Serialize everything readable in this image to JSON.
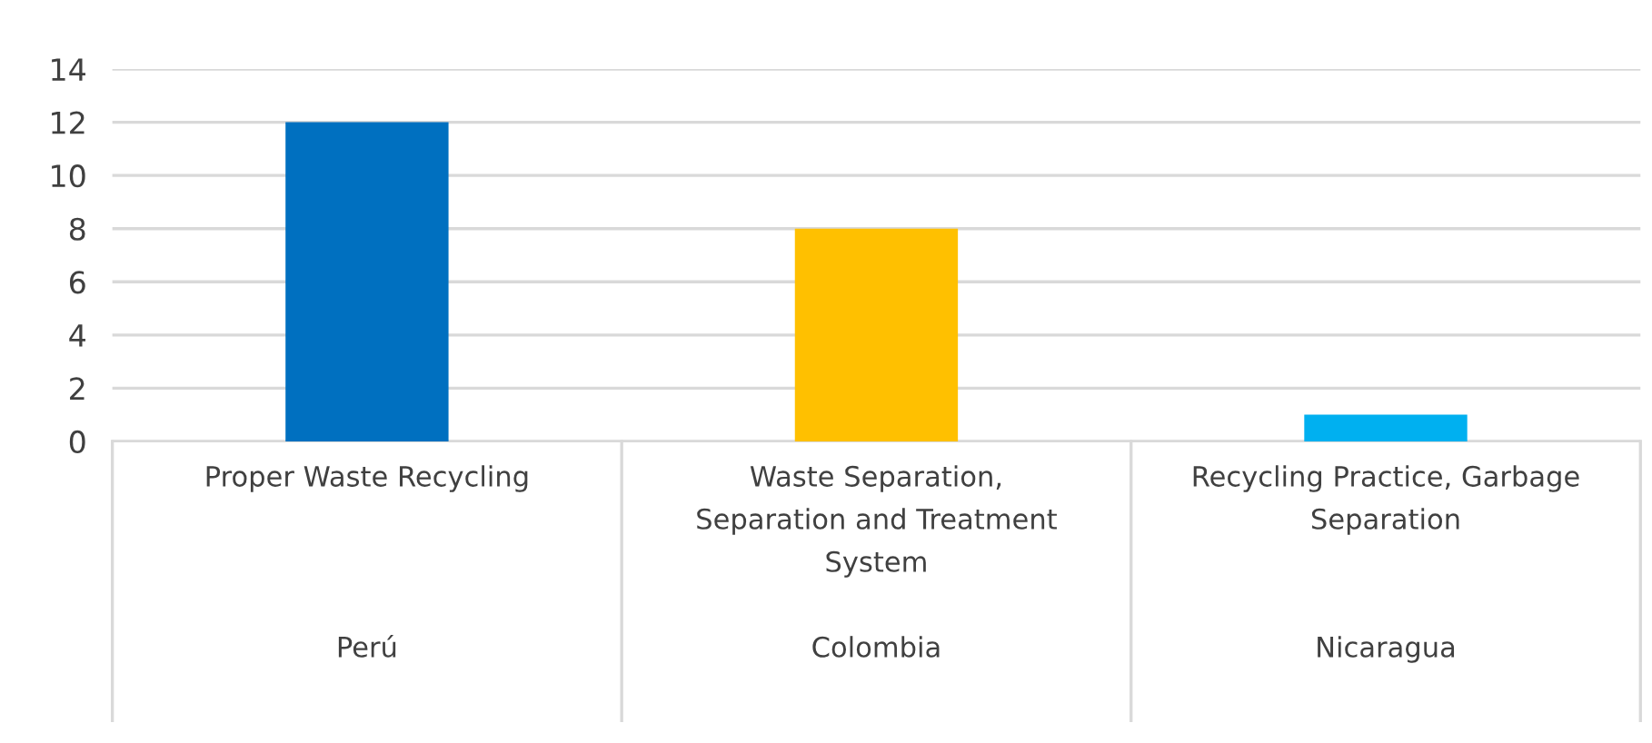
{
  "chart_data": {
    "type": "bar",
    "categories": [
      "Proper Waste Recycling\n\n\n\nPerú",
      "Waste Separation,\nSeparation and Treatment\nSystem\n\nColombia",
      "Recycling Practice, Garbage\nSeparation\n\n\nNicaragua"
    ],
    "values": [
      12,
      8,
      1
    ],
    "colors": [
      "#0070c0",
      "#ffc000",
      "#00b0f0"
    ],
    "ylim": [
      0,
      14
    ],
    "yticks": [
      0,
      2,
      4,
      6,
      8,
      10,
      12,
      14
    ],
    "grid": "y"
  }
}
